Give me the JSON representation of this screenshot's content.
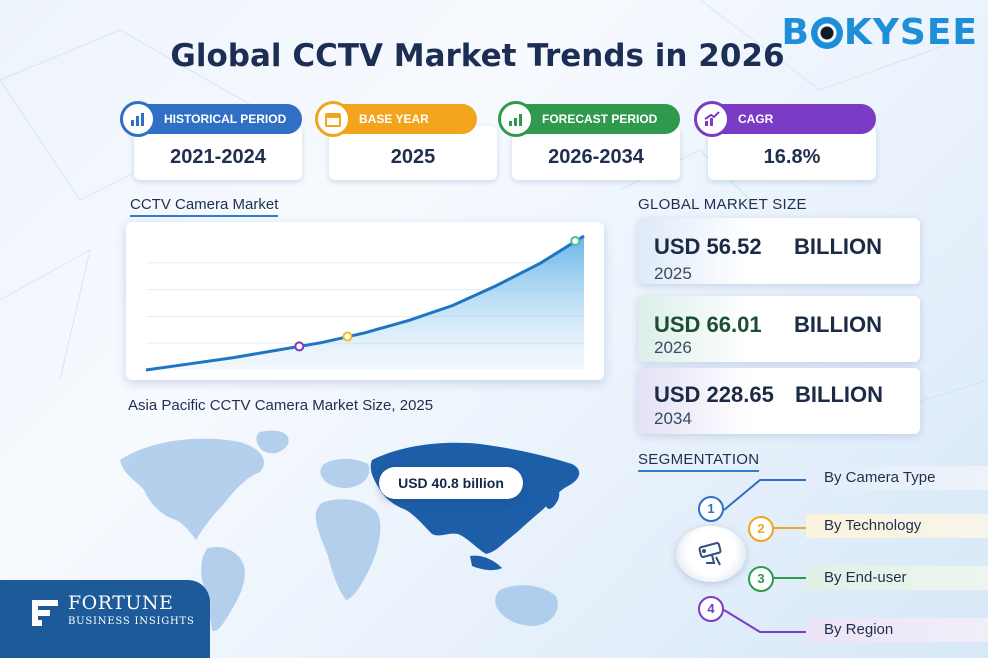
{
  "brand": {
    "name": "BOKYSEE",
    "name_pre": "B",
    "name_post": "KYSEE"
  },
  "title": "Global CCTV Market Trends in 2026",
  "stats": [
    {
      "label": "HISTORICAL PERIOD",
      "value": "2021-2024",
      "color": "#2f6fc4",
      "icon": "bar-chart-icon"
    },
    {
      "label": "BASE YEAR",
      "value": "2025",
      "color": "#f2a51c",
      "icon": "calendar-icon"
    },
    {
      "label": "FORECAST PERIOD",
      "value": "2026-2034",
      "color": "#2f9a4e",
      "icon": "growth-chart-icon"
    },
    {
      "label": "CAGR",
      "value": "16.8%",
      "color": "#7a3bc6",
      "icon": "trend-chart-icon"
    }
  ],
  "market_chart": {
    "label": "CCTV Camera Market"
  },
  "chart_data": {
    "type": "area",
    "title": "CCTV Camera Market",
    "x": [
      0,
      1,
      2,
      3,
      4,
      5,
      6,
      7,
      8,
      9,
      10
    ],
    "values": [
      0,
      5,
      10,
      16,
      22,
      30,
      40,
      52,
      68,
      86,
      108
    ],
    "highlighted_points": [
      {
        "x": 3.5,
        "value": 19,
        "color": "#7a3bc6"
      },
      {
        "x": 4.6,
        "value": 27,
        "color": "#f2c01c"
      },
      {
        "x": 9.8,
        "value": 104,
        "color": "#4cc08a"
      }
    ],
    "xlabel": "",
    "ylabel": "",
    "grid": true
  },
  "global_size": {
    "label": "GLOBAL MARKET SIZE",
    "cards": [
      {
        "amount": "USD 56.52",
        "unit": "BILLION",
        "year": "2025",
        "accent": "#2f6fc4"
      },
      {
        "amount": "USD 66.01",
        "unit": "BILLION",
        "year": "2026",
        "accent": "#2f9a4e"
      },
      {
        "amount": "USD 228.65",
        "unit": "BILLION",
        "year": "2034",
        "accent": "#7a3bc6"
      }
    ]
  },
  "asia_pacific": {
    "label": "Asia Pacific CCTV Camera Market Size, 2025",
    "value": "USD 40.8 billion"
  },
  "fortune": {
    "name": "FORTUNE",
    "sub": "BUSINESS INSIGHTS"
  },
  "segmentation": {
    "label": "SEGMENTATION",
    "items": [
      {
        "num": "1",
        "label": "By Camera Type",
        "color": "#2f6fc4",
        "bg": "#e3edf9"
      },
      {
        "num": "2",
        "label": "By Technology",
        "color": "#f2a51c",
        "bg": "#fbf3dc"
      },
      {
        "num": "3",
        "label": "By End-user",
        "color": "#2f9a4e",
        "bg": "#e0f1e6"
      },
      {
        "num": "4",
        "label": "By Region",
        "color": "#7a3bc6",
        "bg": "#ebe4f7"
      }
    ]
  }
}
